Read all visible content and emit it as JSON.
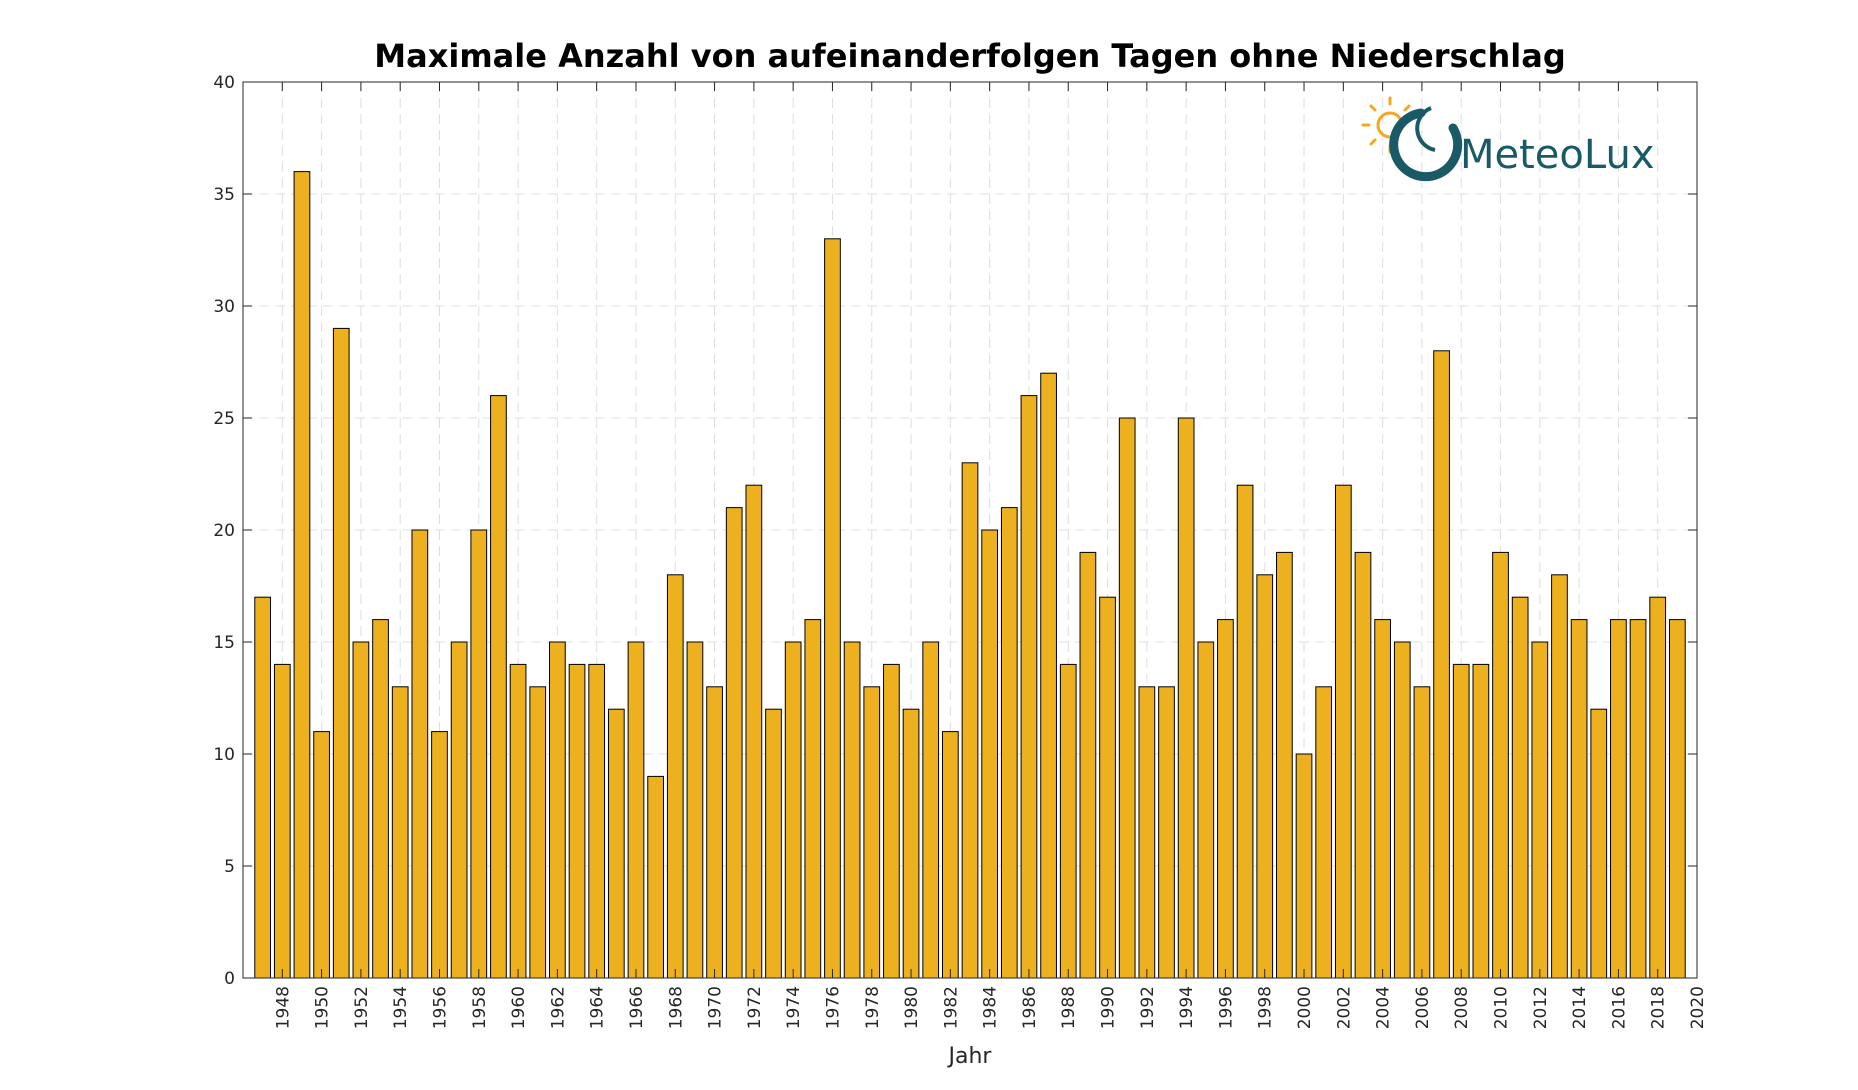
{
  "chart_data": {
    "type": "bar",
    "title": "Maximale Anzahl von aufeinanderfolgen Tagen ohne Niederschlag",
    "xlabel": "Jahr",
    "ylabel": "",
    "ylim": [
      0,
      40
    ],
    "yticks": [
      0,
      5,
      10,
      15,
      20,
      25,
      30,
      35,
      40
    ],
    "xlim": [
      1946,
      2020
    ],
    "xticks": [
      1948,
      1950,
      1952,
      1954,
      1956,
      1958,
      1960,
      1962,
      1964,
      1966,
      1968,
      1970,
      1972,
      1974,
      1976,
      1978,
      1980,
      1982,
      1984,
      1986,
      1988,
      1990,
      1992,
      1994,
      1996,
      1998,
      2000,
      2002,
      2004,
      2006,
      2008,
      2010,
      2012,
      2014,
      2016,
      2018,
      2020
    ],
    "grid": true,
    "bar_color": "#EDB120",
    "categories": [
      1947,
      1948,
      1949,
      1950,
      1951,
      1952,
      1953,
      1954,
      1955,
      1956,
      1957,
      1958,
      1959,
      1960,
      1961,
      1962,
      1963,
      1964,
      1965,
      1966,
      1967,
      1968,
      1969,
      1970,
      1971,
      1972,
      1973,
      1974,
      1975,
      1976,
      1977,
      1978,
      1979,
      1980,
      1981,
      1982,
      1983,
      1984,
      1985,
      1986,
      1987,
      1988,
      1989,
      1990,
      1991,
      1992,
      1993,
      1994,
      1995,
      1996,
      1997,
      1998,
      1999,
      2000,
      2001,
      2002,
      2003,
      2004,
      2005,
      2006,
      2007,
      2008,
      2009,
      2010,
      2011,
      2012,
      2013,
      2014,
      2015,
      2016,
      2017,
      2018,
      2019
    ],
    "values": [
      17,
      14,
      36,
      11,
      29,
      15,
      16,
      13,
      20,
      11,
      15,
      20,
      26,
      14,
      13,
      15,
      14,
      14,
      12,
      15,
      9,
      18,
      15,
      13,
      21,
      22,
      12,
      15,
      16,
      33,
      15,
      13,
      14,
      12,
      15,
      11,
      23,
      20,
      21,
      26,
      27,
      14,
      19,
      17,
      25,
      13,
      13,
      25,
      15,
      16,
      22,
      18,
      19,
      10,
      13,
      22,
      19,
      16,
      15,
      13,
      28,
      14,
      14,
      19,
      17,
      15,
      18,
      16,
      12,
      16,
      16,
      17,
      16
    ]
  },
  "logo": {
    "text": "MeteoLux",
    "icon": "sun-icon",
    "colors": {
      "sun": "#F5A623",
      "ring": "#1a5a66"
    }
  }
}
